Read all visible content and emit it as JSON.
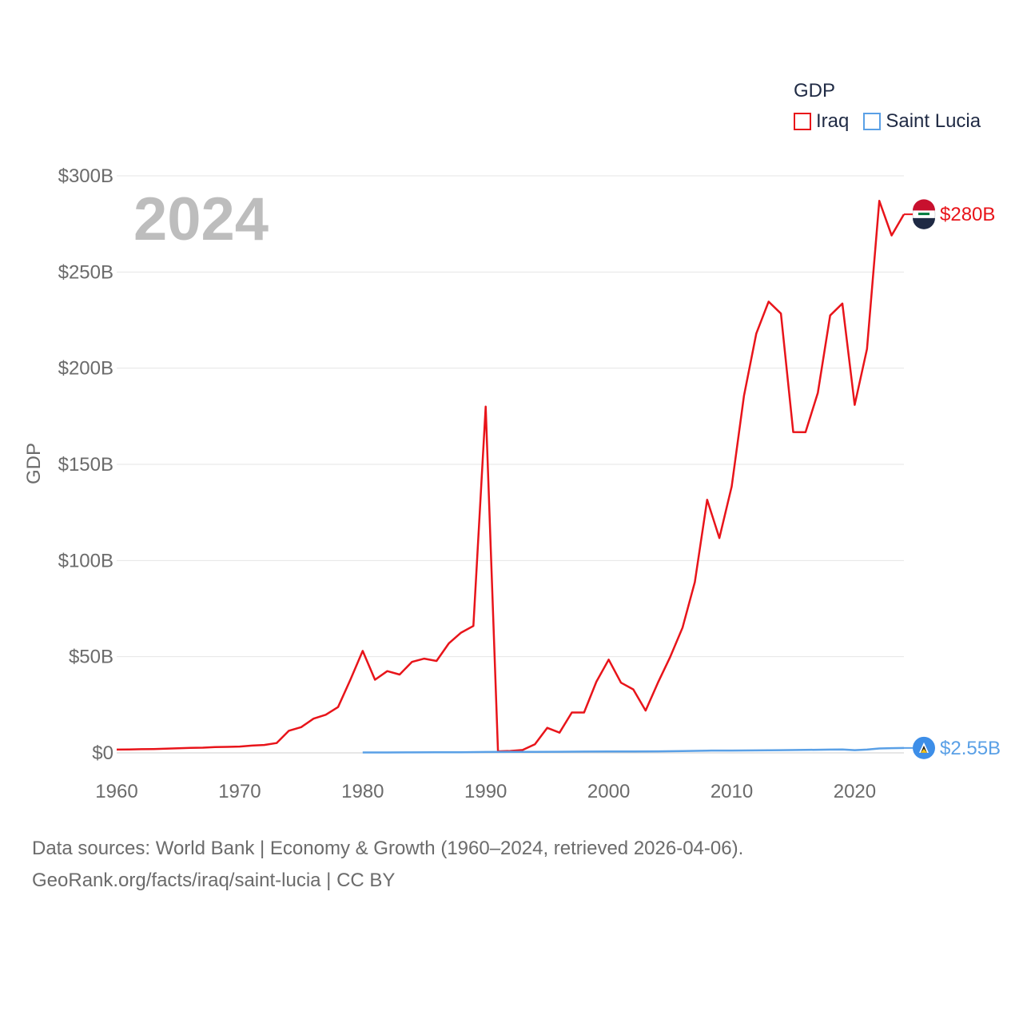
{
  "chart_data": {
    "type": "line",
    "title": "",
    "ylabel": "GDP",
    "xlabel": "",
    "year_overlay": "2024",
    "xlim": [
      1960,
      2024
    ],
    "ylim": [
      0,
      300
    ],
    "x_ticks": [
      1960,
      1970,
      1980,
      1990,
      2000,
      2010,
      2020
    ],
    "x_tick_labels": [
      "1960",
      "1970",
      "1980",
      "1990",
      "2000",
      "2010",
      "2020"
    ],
    "y_ticks": [
      0,
      50,
      100,
      150,
      200,
      250,
      300
    ],
    "y_tick_labels": [
      "$0",
      "$50B",
      "$100B",
      "$150B",
      "$200B",
      "$250B",
      "$300B"
    ],
    "legend": {
      "title": "GDP",
      "position": "top-right"
    },
    "series": [
      {
        "name": "Iraq",
        "color": "#e8141a",
        "end_label": "$280B",
        "end_icon": "iraq-flag-icon",
        "x": [
          1960,
          1961,
          1962,
          1963,
          1964,
          1965,
          1966,
          1967,
          1968,
          1969,
          1970,
          1971,
          1972,
          1973,
          1974,
          1975,
          1976,
          1977,
          1978,
          1979,
          1980,
          1981,
          1982,
          1983,
          1984,
          1985,
          1986,
          1987,
          1988,
          1989,
          1990,
          1991,
          1992,
          1993,
          1994,
          1995,
          1996,
          1997,
          1998,
          1999,
          2000,
          2001,
          2002,
          2003,
          2004,
          2005,
          2006,
          2007,
          2008,
          2009,
          2010,
          2011,
          2012,
          2013,
          2014,
          2015,
          2016,
          2017,
          2018,
          2019,
          2020,
          2021,
          2022,
          2023,
          2024
        ],
        "values": [
          1.7,
          1.8,
          1.9,
          2.0,
          2.2,
          2.4,
          2.6,
          2.7,
          3.0,
          3.1,
          3.3,
          3.8,
          4.1,
          5.1,
          11.5,
          13.4,
          17.8,
          19.8,
          23.8,
          38.0,
          53.0,
          38.0,
          42.5,
          40.7,
          47.3,
          49.0,
          47.8,
          56.9,
          62.5,
          66.0,
          180.0,
          0.8,
          1.0,
          1.5,
          4.5,
          13.0,
          10.5,
          21.0,
          21.0,
          37.0,
          48.5,
          36.5,
          33.0,
          22.0,
          36.5,
          49.9,
          65.1,
          88.8,
          131.6,
          111.7,
          138.5,
          185.7,
          218.0,
          234.6,
          228.4,
          166.8,
          166.7,
          187.2,
          227.4,
          233.6,
          180.9,
          210.0,
          287.0,
          269.0,
          280.0
        ]
      },
      {
        "name": "Saint Lucia",
        "color": "#5aa0e6",
        "end_label": "$2.55B",
        "end_icon": "saint-lucia-flag-icon",
        "x": [
          1980,
          1982,
          1984,
          1986,
          1988,
          1990,
          1992,
          1994,
          1996,
          1998,
          2000,
          2002,
          2004,
          2006,
          2008,
          2010,
          2012,
          2014,
          2016,
          2018,
          2019,
          2020,
          2021,
          2022,
          2023,
          2024
        ],
        "values": [
          0.2,
          0.2,
          0.25,
          0.3,
          0.35,
          0.45,
          0.5,
          0.55,
          0.6,
          0.65,
          0.7,
          0.75,
          0.8,
          0.95,
          1.15,
          1.2,
          1.3,
          1.4,
          1.55,
          1.7,
          1.75,
          1.4,
          1.7,
          2.3,
          2.45,
          2.55
        ]
      }
    ]
  },
  "source": {
    "line1": "Data sources: World Bank | Economy & Growth (1960–2024, retrieved 2026-04-06).",
    "line2": "GeoRank.org/facts/iraq/saint-lucia | CC BY"
  }
}
